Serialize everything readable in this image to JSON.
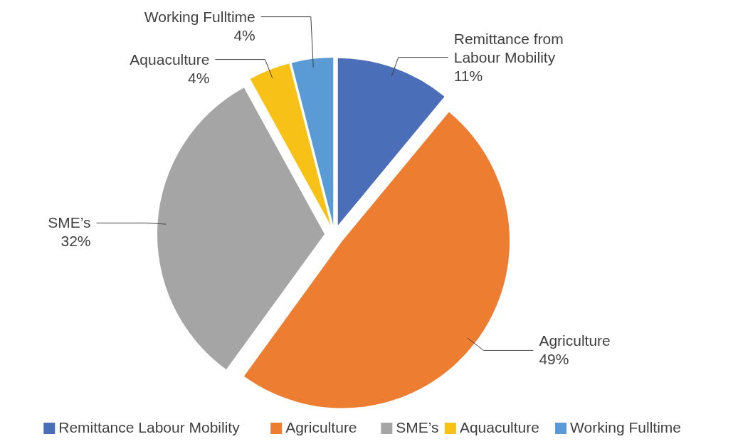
{
  "chart_data": {
    "type": "pie",
    "categories": [
      "Remittance Labour Mobility",
      "Agriculture",
      "SME’s",
      "Aquaculture",
      "Working Fulltime"
    ],
    "values": [
      11,
      49,
      32,
      4,
      4
    ],
    "colors": [
      "#4a6fb8",
      "#ed7d31",
      "#a5a5a5",
      "#f8c117",
      "#5b9bd5"
    ],
    "value_labels": [
      "Remittance from\nLabour Mobility\n11%",
      "Agriculture\n49%",
      "SME’s\n32%",
      "Aquaculture\n4%",
      "Working Fulltime\n4%"
    ],
    "legend": "bottom"
  }
}
